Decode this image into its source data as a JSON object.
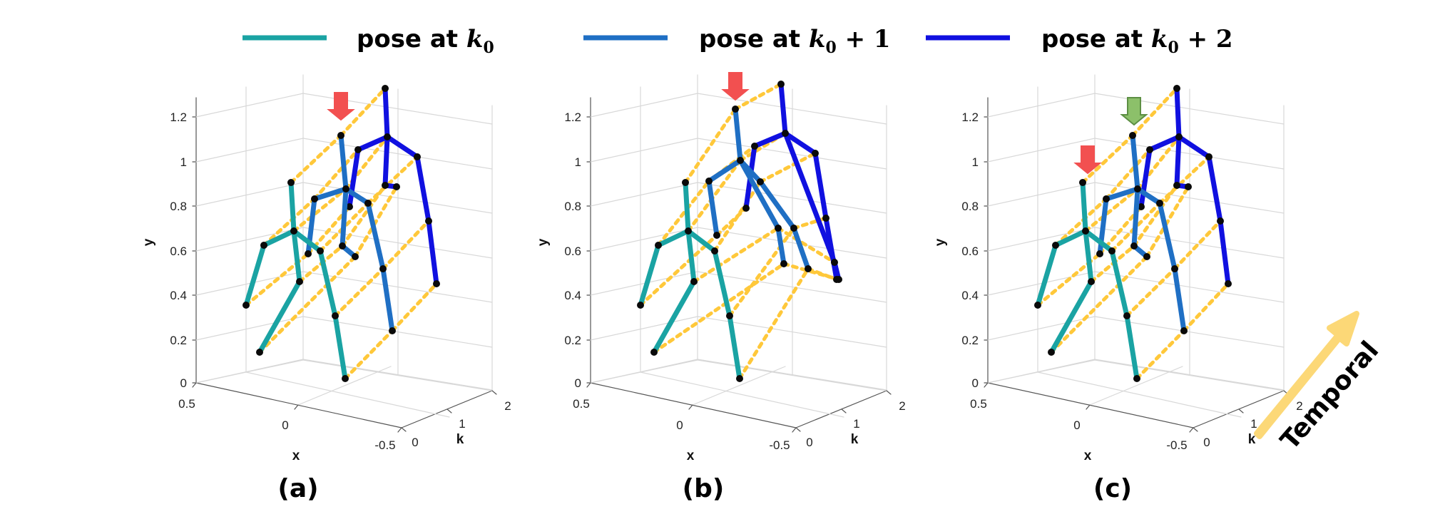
{
  "legend": {
    "items": [
      {
        "label": "pose at ",
        "math": "k",
        "sub": "0",
        "suffix": "",
        "color": "#1aa3a3"
      },
      {
        "label": "pose at ",
        "math": "k",
        "sub": "0",
        "suffix": " + 1",
        "color": "#1f6fc4"
      },
      {
        "label": "pose at ",
        "math": "k",
        "sub": "0",
        "suffix": " + 2",
        "color": "#1010e0"
      }
    ]
  },
  "axes": {
    "y_ticks": [
      "0",
      "0.2",
      "0.4",
      "0.6",
      "0.8",
      "1",
      "1.2"
    ],
    "x_ticks": [
      "0.5",
      "0",
      "-0.5"
    ],
    "k_ticks": [
      "0",
      "1",
      "2"
    ],
    "y_label": "y",
    "x_label": "x",
    "k_label": "k"
  },
  "panels": [
    {
      "label": "(a)"
    },
    {
      "label": "(b)"
    },
    {
      "label": "(c)"
    }
  ],
  "temporal_label": "Temporal",
  "colors": {
    "pose0": "#1aa3a3",
    "pose1": "#1f6fc4",
    "pose2": "#1010e0",
    "edge": "#ffc83a",
    "arrow_red": "#f25050",
    "arrow_green": "#8cc06a",
    "grid": "#d8d8d8"
  }
}
